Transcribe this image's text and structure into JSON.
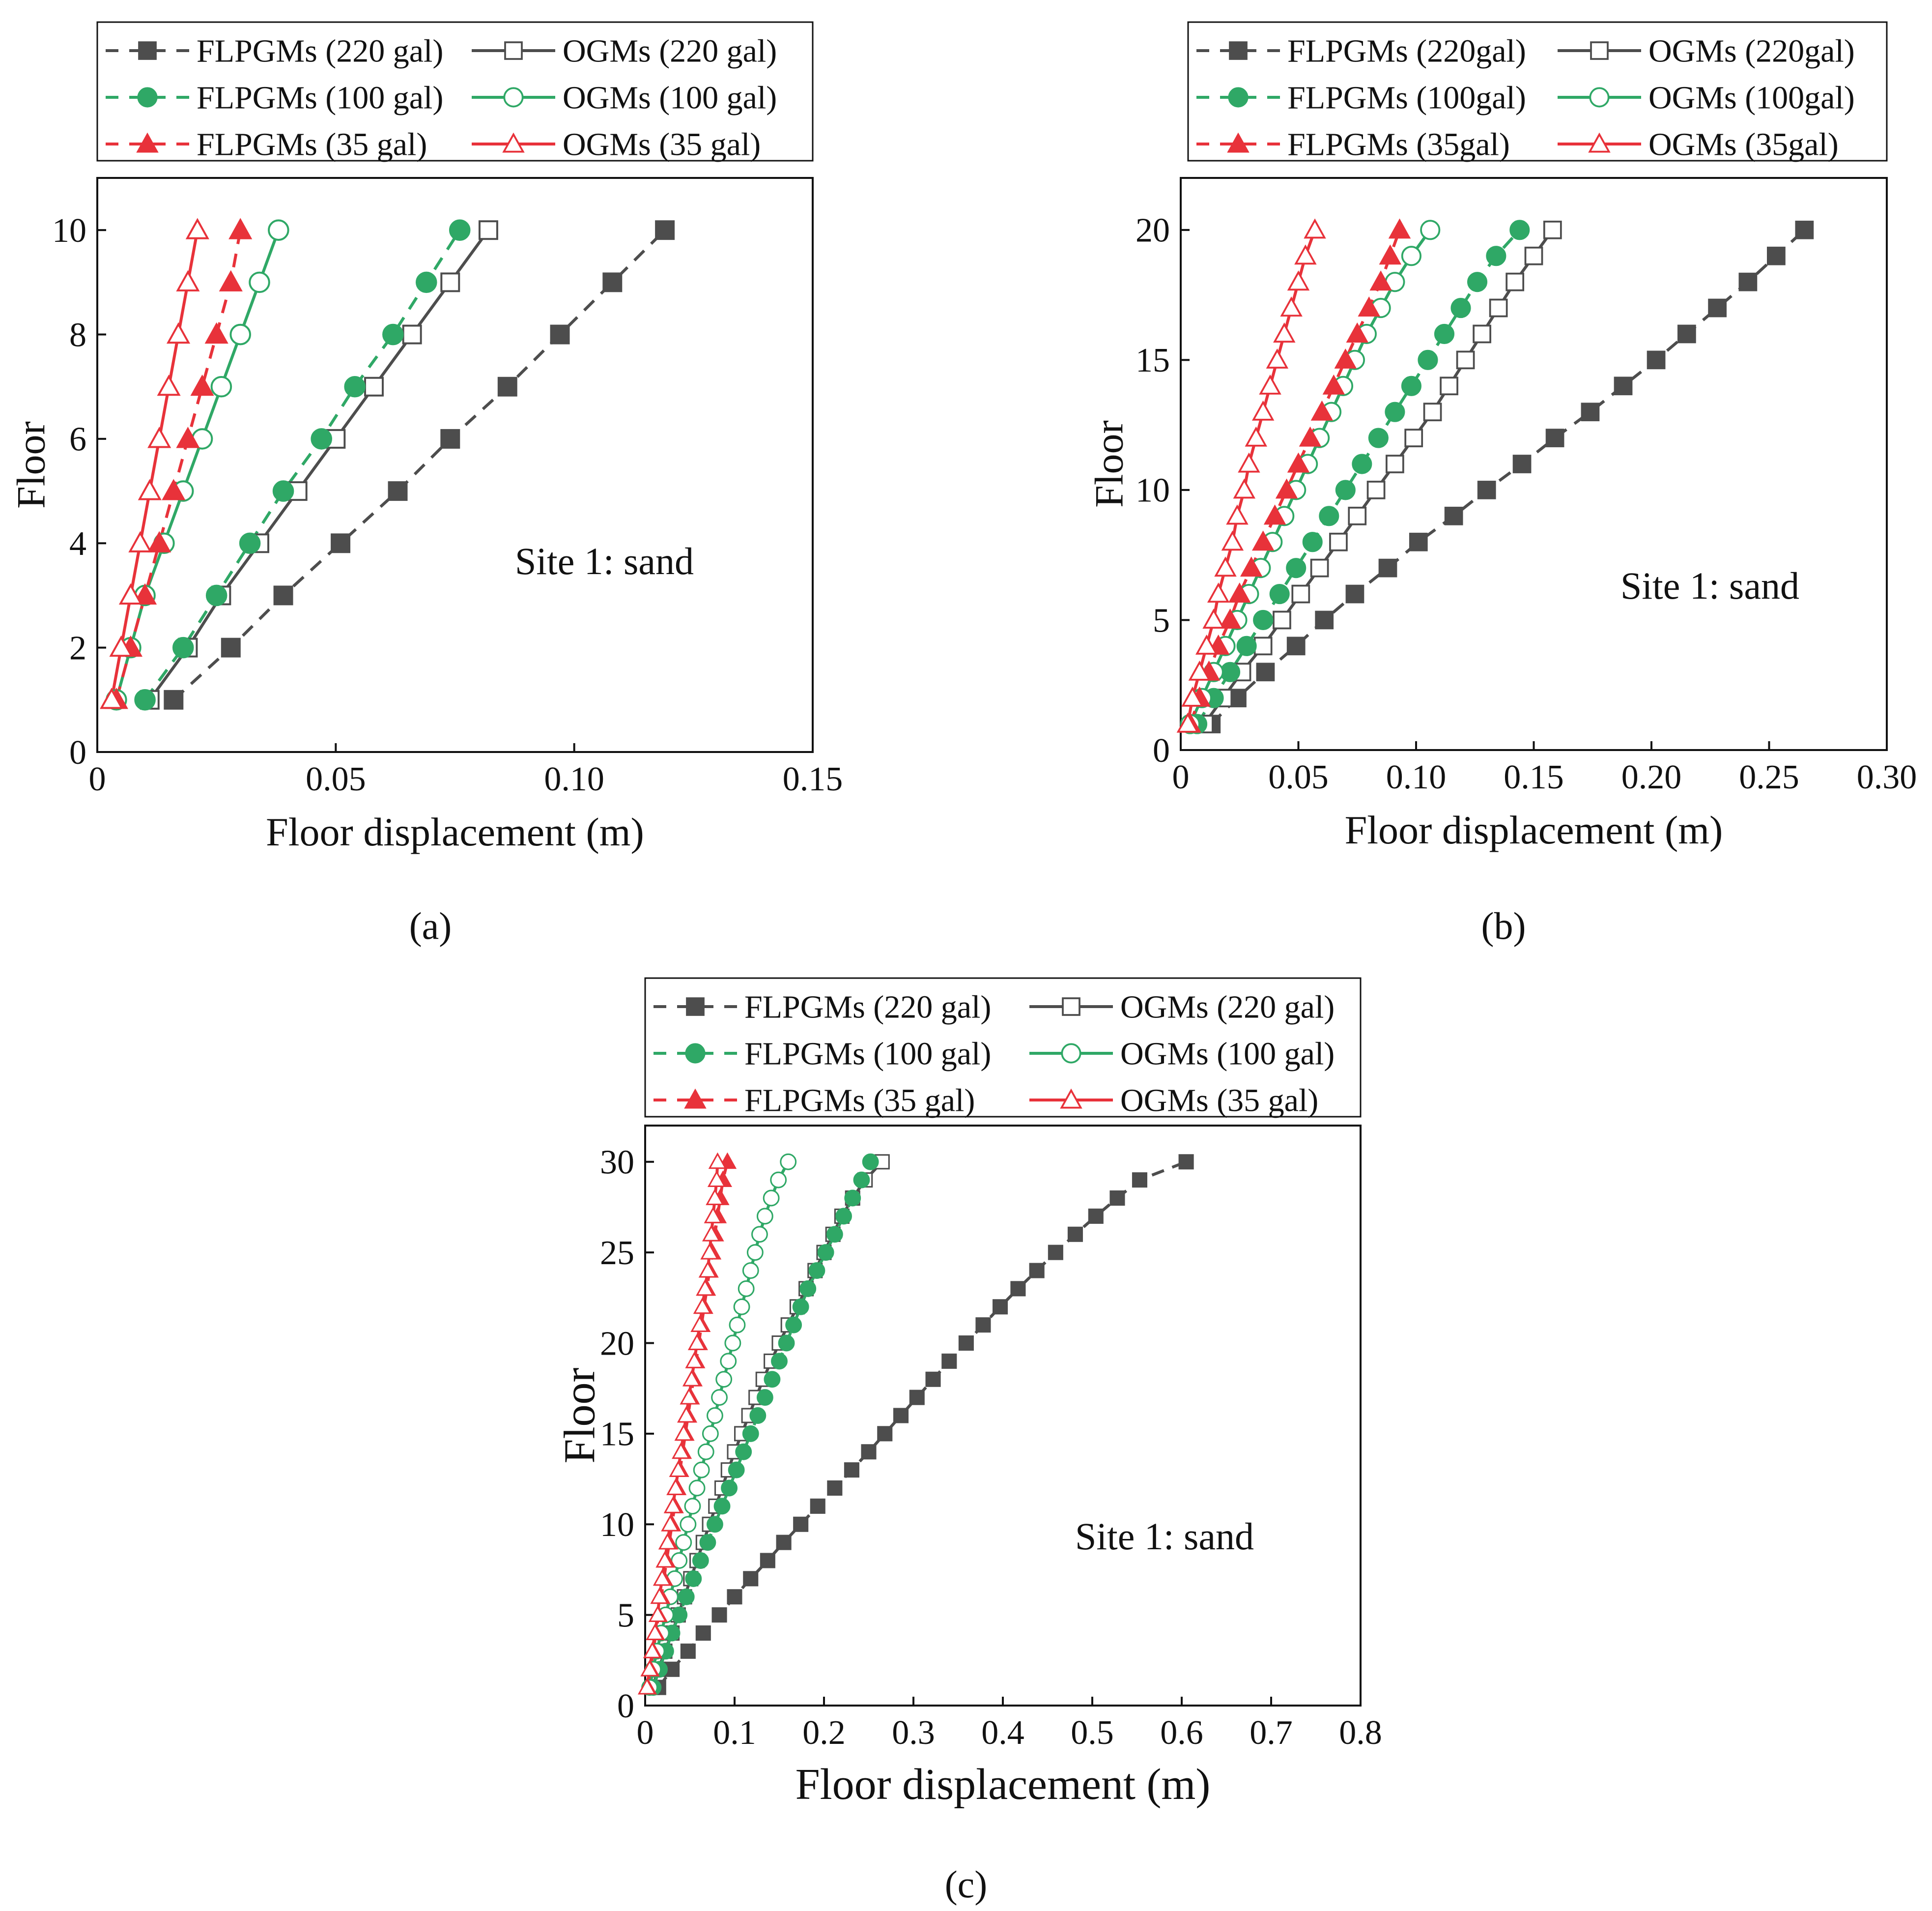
{
  "colors": {
    "dark": "#4d4d4d",
    "green": "#2fa866",
    "red": "#e8323a",
    "axis": "#111111"
  },
  "chart_data": [
    {
      "type": "line",
      "panel_label": "(a)",
      "annotation": "Site 1: sand",
      "xlabel": "Floor displacement (m)",
      "ylabel": "Floor",
      "xlim": [
        0,
        0.15
      ],
      "ylim": [
        0,
        11
      ],
      "xticks": [
        0,
        0.05,
        0.1,
        0.15
      ],
      "xtick_labels": [
        "0",
        "0.05",
        "0.10",
        "0.15"
      ],
      "yticks": [
        0,
        2,
        4,
        6,
        8,
        10
      ],
      "ytick_labels": [
        "0",
        "2",
        "4",
        "6",
        "8",
        "10"
      ],
      "legend": [
        [
          "FLPGMs (220 gal)",
          "OGMs (220 gal)"
        ],
        [
          "FLPGMs (100 gal)",
          "OGMs (100 gal)"
        ],
        [
          "FLPGMs (35 gal)",
          "OGMs  (35 gal)"
        ]
      ],
      "series": [
        {
          "name": "FLPGMs (220 gal)",
          "color": "dark",
          "marker": "square",
          "filled": true,
          "dash": true,
          "floors": [
            1,
            2,
            3,
            4,
            5,
            6,
            7,
            8,
            9,
            10
          ],
          "values": [
            0.016,
            0.028,
            0.039,
            0.051,
            0.063,
            0.074,
            0.086,
            0.097,
            0.108,
            0.119
          ]
        },
        {
          "name": "OGMs (220 gal)",
          "color": "dark",
          "marker": "square",
          "filled": false,
          "dash": false,
          "floors": [
            1,
            2,
            3,
            4,
            5,
            6,
            7,
            8,
            9,
            10
          ],
          "values": [
            0.011,
            0.019,
            0.026,
            0.034,
            0.042,
            0.05,
            0.058,
            0.066,
            0.074,
            0.082
          ]
        },
        {
          "name": "FLPGMs (100 gal)",
          "color": "green",
          "marker": "circle",
          "filled": true,
          "dash": true,
          "floors": [
            1,
            2,
            3,
            4,
            5,
            6,
            7,
            8,
            9,
            10
          ],
          "values": [
            0.01,
            0.018,
            0.025,
            0.032,
            0.039,
            0.047,
            0.054,
            0.062,
            0.069,
            0.076
          ]
        },
        {
          "name": "OGMs (100 gal)",
          "color": "green",
          "marker": "circle",
          "filled": false,
          "dash": false,
          "floors": [
            1,
            2,
            3,
            4,
            5,
            6,
            7,
            8,
            9,
            10
          ],
          "values": [
            0.004,
            0.007,
            0.01,
            0.014,
            0.018,
            0.022,
            0.026,
            0.03,
            0.034,
            0.038
          ]
        },
        {
          "name": "FLPGMs (35 gal)",
          "color": "red",
          "marker": "triangle",
          "filled": true,
          "dash": true,
          "floors": [
            1,
            2,
            3,
            4,
            5,
            6,
            7,
            8,
            9,
            10
          ],
          "values": [
            0.004,
            0.007,
            0.01,
            0.013,
            0.016,
            0.019,
            0.022,
            0.025,
            0.028,
            0.03
          ]
        },
        {
          "name": "OGMs  (35 gal)",
          "color": "red",
          "marker": "triangle",
          "filled": false,
          "dash": false,
          "floors": [
            1,
            2,
            3,
            4,
            5,
            6,
            7,
            8,
            9,
            10
          ],
          "values": [
            0.003,
            0.005,
            0.007,
            0.009,
            0.011,
            0.013,
            0.015,
            0.017,
            0.019,
            0.021
          ]
        }
      ]
    },
    {
      "type": "line",
      "panel_label": "(b)",
      "annotation": "Site 1: sand",
      "xlabel": "Floor displacement (m)",
      "ylabel": "Floor",
      "xlim": [
        0,
        0.3
      ],
      "ylim": [
        0,
        22
      ],
      "xticks": [
        0,
        0.05,
        0.1,
        0.15,
        0.2,
        0.25,
        0.3
      ],
      "xtick_labels": [
        "0",
        "0.05",
        "0.10",
        "0.15",
        "0.20",
        "0.25",
        "0.30"
      ],
      "yticks": [
        0,
        5,
        10,
        15,
        20
      ],
      "ytick_labels": [
        "0",
        "5",
        "10",
        "15",
        "20"
      ],
      "legend": [
        [
          "FLPGMs (220gal)",
          "OGMs (220gal)"
        ],
        [
          "FLPGMs (100gal)",
          "OGMs (100gal)"
        ],
        [
          "FLPGMs (35gal)",
          "OGMs (35gal)"
        ]
      ],
      "series": [
        {
          "name": "FLPGMs (220gal)",
          "color": "dark",
          "marker": "square",
          "filled": true,
          "dash": true,
          "floors": [
            1,
            2,
            3,
            4,
            5,
            6,
            7,
            8,
            9,
            10,
            11,
            12,
            13,
            14,
            15,
            16,
            17,
            18,
            19,
            20
          ],
          "values": [
            0.013,
            0.024,
            0.036,
            0.049,
            0.061,
            0.074,
            0.088,
            0.101,
            0.116,
            0.13,
            0.145,
            0.159,
            0.174,
            0.188,
            0.202,
            0.215,
            0.228,
            0.241,
            0.253,
            0.265
          ]
        },
        {
          "name": "OGMs (220gal)",
          "color": "dark",
          "marker": "square",
          "filled": false,
          "dash": false,
          "floors": [
            1,
            2,
            3,
            4,
            5,
            6,
            7,
            8,
            9,
            10,
            11,
            12,
            13,
            14,
            15,
            16,
            17,
            18,
            19,
            20
          ],
          "values": [
            0.01,
            0.018,
            0.026,
            0.035,
            0.043,
            0.051,
            0.059,
            0.067,
            0.075,
            0.083,
            0.091,
            0.099,
            0.107,
            0.114,
            0.121,
            0.128,
            0.135,
            0.142,
            0.15,
            0.158
          ]
        },
        {
          "name": "FLPGMs (100gal)",
          "color": "green",
          "marker": "circle",
          "filled": true,
          "dash": true,
          "floors": [
            1,
            2,
            3,
            4,
            5,
            6,
            7,
            8,
            9,
            10,
            11,
            12,
            13,
            14,
            15,
            16,
            17,
            18,
            19,
            20
          ],
          "values": [
            0.007,
            0.014,
            0.021,
            0.028,
            0.035,
            0.042,
            0.049,
            0.056,
            0.063,
            0.07,
            0.077,
            0.084,
            0.091,
            0.098,
            0.105,
            0.112,
            0.119,
            0.126,
            0.134,
            0.144
          ]
        },
        {
          "name": "OGMs (100gal)",
          "color": "green",
          "marker": "circle",
          "filled": false,
          "dash": false,
          "floors": [
            1,
            2,
            3,
            4,
            5,
            6,
            7,
            8,
            9,
            10,
            11,
            12,
            13,
            14,
            15,
            16,
            17,
            18,
            19,
            20
          ],
          "values": [
            0.004,
            0.009,
            0.014,
            0.019,
            0.024,
            0.029,
            0.034,
            0.039,
            0.044,
            0.049,
            0.054,
            0.059,
            0.064,
            0.069,
            0.074,
            0.079,
            0.085,
            0.091,
            0.098,
            0.106
          ]
        },
        {
          "name": "FLPGMs (35gal)",
          "color": "red",
          "marker": "triangle",
          "filled": true,
          "dash": true,
          "floors": [
            1,
            2,
            3,
            4,
            5,
            6,
            7,
            8,
            9,
            10,
            11,
            12,
            13,
            14,
            15,
            16,
            17,
            18,
            19,
            20
          ],
          "values": [
            0.004,
            0.008,
            0.012,
            0.016,
            0.021,
            0.025,
            0.03,
            0.035,
            0.04,
            0.045,
            0.05,
            0.055,
            0.06,
            0.065,
            0.07,
            0.075,
            0.08,
            0.085,
            0.089,
            0.093
          ]
        },
        {
          "name": "OGMs (35gal)",
          "color": "red",
          "marker": "triangle",
          "filled": false,
          "dash": false,
          "floors": [
            1,
            2,
            3,
            4,
            5,
            6,
            7,
            8,
            9,
            10,
            11,
            12,
            13,
            14,
            15,
            16,
            17,
            18,
            19,
            20
          ],
          "values": [
            0.003,
            0.005,
            0.008,
            0.011,
            0.014,
            0.016,
            0.019,
            0.022,
            0.024,
            0.027,
            0.029,
            0.032,
            0.035,
            0.038,
            0.041,
            0.044,
            0.047,
            0.05,
            0.053,
            0.057
          ]
        }
      ]
    },
    {
      "type": "line",
      "panel_label": "(c)",
      "annotation": "Site 1: sand",
      "xlabel": "Floor displacement (m)",
      "ylabel": "Floor",
      "xlim": [
        0,
        0.8
      ],
      "ylim": [
        0,
        32
      ],
      "xticks": [
        0,
        0.1,
        0.2,
        0.3,
        0.4,
        0.5,
        0.6,
        0.7,
        0.8
      ],
      "xtick_labels": [
        "0",
        "0.1",
        "0.2",
        "0.3",
        "0.4",
        "0.5",
        "0.6",
        "0.7",
        "0.8"
      ],
      "yticks": [
        0,
        5,
        10,
        15,
        20,
        25,
        30
      ],
      "ytick_labels": [
        "0",
        "5",
        "10",
        "15",
        "20",
        "25",
        "30"
      ],
      "legend": [
        [
          "FLPGMs (220 gal)",
          "OGMs (220 gal)"
        ],
        [
          "FLPGMs (100 gal)",
          "OGMs (100 gal)"
        ],
        [
          "FLPGMs (35 gal)",
          "OGMs  (35 gal)"
        ]
      ],
      "series": [
        {
          "name": "FLPGMs (220 gal)",
          "color": "dark",
          "marker": "square",
          "filled": true,
          "dash": true,
          "floors": [
            1,
            2,
            3,
            4,
            5,
            6,
            7,
            8,
            9,
            10,
            11,
            12,
            13,
            14,
            15,
            16,
            17,
            18,
            19,
            20,
            21,
            22,
            23,
            24,
            25,
            26,
            27,
            28,
            29,
            30
          ],
          "values": [
            0.015,
            0.03,
            0.048,
            0.065,
            0.083,
            0.1,
            0.118,
            0.137,
            0.155,
            0.174,
            0.193,
            0.212,
            0.231,
            0.25,
            0.268,
            0.286,
            0.304,
            0.322,
            0.34,
            0.359,
            0.378,
            0.397,
            0.417,
            0.438,
            0.459,
            0.481,
            0.504,
            0.528,
            0.553,
            0.605
          ]
        },
        {
          "name": "OGMs (220 gal)",
          "color": "dark",
          "marker": "square",
          "filled": false,
          "dash": false,
          "floors": [
            1,
            2,
            3,
            4,
            5,
            6,
            7,
            8,
            9,
            10,
            11,
            12,
            13,
            14,
            15,
            16,
            17,
            18,
            19,
            20,
            21,
            22,
            23,
            24,
            25,
            26,
            27,
            28,
            29,
            30
          ],
          "values": [
            0.008,
            0.015,
            0.022,
            0.03,
            0.037,
            0.044,
            0.051,
            0.058,
            0.065,
            0.072,
            0.079,
            0.086,
            0.093,
            0.1,
            0.108,
            0.116,
            0.124,
            0.132,
            0.141,
            0.15,
            0.16,
            0.17,
            0.18,
            0.19,
            0.2,
            0.21,
            0.22,
            0.232,
            0.246,
            0.265
          ]
        },
        {
          "name": "FLPGMs (100 gal)",
          "color": "green",
          "marker": "circle",
          "filled": true,
          "dash": true,
          "floors": [
            1,
            2,
            3,
            4,
            5,
            6,
            7,
            8,
            9,
            10,
            11,
            12,
            13,
            14,
            15,
            16,
            17,
            18,
            19,
            20,
            21,
            22,
            23,
            24,
            25,
            26,
            27,
            28,
            29,
            30
          ],
          "values": [
            0.009,
            0.016,
            0.023,
            0.03,
            0.038,
            0.046,
            0.054,
            0.062,
            0.07,
            0.078,
            0.086,
            0.094,
            0.102,
            0.11,
            0.118,
            0.126,
            0.134,
            0.142,
            0.15,
            0.158,
            0.166,
            0.174,
            0.182,
            0.192,
            0.202,
            0.212,
            0.222,
            0.232,
            0.242,
            0.252
          ]
        },
        {
          "name": "OGMs (100 gal)",
          "color": "green",
          "marker": "circle",
          "filled": false,
          "dash": false,
          "floors": [
            1,
            2,
            3,
            4,
            5,
            6,
            7,
            8,
            9,
            10,
            11,
            12,
            13,
            14,
            15,
            16,
            17,
            18,
            19,
            20,
            21,
            22,
            23,
            24,
            25,
            26,
            27,
            28,
            29,
            30
          ],
          "values": [
            0.005,
            0.009,
            0.013,
            0.018,
            0.023,
            0.028,
            0.033,
            0.038,
            0.043,
            0.048,
            0.053,
            0.058,
            0.063,
            0.068,
            0.073,
            0.078,
            0.083,
            0.088,
            0.093,
            0.098,
            0.103,
            0.108,
            0.113,
            0.118,
            0.123,
            0.128,
            0.134,
            0.141,
            0.149,
            0.16
          ]
        },
        {
          "name": "FLPGMs (35 gal)",
          "color": "red",
          "marker": "triangle",
          "filled": true,
          "dash": true,
          "floors": [
            1,
            2,
            3,
            4,
            5,
            6,
            7,
            8,
            9,
            10,
            11,
            12,
            13,
            14,
            15,
            16,
            17,
            18,
            19,
            20,
            21,
            22,
            23,
            24,
            25,
            26,
            27,
            28,
            29,
            30
          ],
          "values": [
            0.003,
            0.006,
            0.009,
            0.012,
            0.015,
            0.018,
            0.021,
            0.024,
            0.027,
            0.03,
            0.033,
            0.036,
            0.039,
            0.042,
            0.045,
            0.048,
            0.051,
            0.054,
            0.057,
            0.06,
            0.063,
            0.066,
            0.069,
            0.072,
            0.075,
            0.078,
            0.081,
            0.084,
            0.087,
            0.092
          ]
        },
        {
          "name": "OGMs  (35 gal)",
          "color": "red",
          "marker": "triangle",
          "filled": false,
          "dash": false,
          "floors": [
            1,
            2,
            3,
            4,
            5,
            6,
            7,
            8,
            9,
            10,
            11,
            12,
            13,
            14,
            15,
            16,
            17,
            18,
            19,
            20,
            21,
            22,
            23,
            24,
            25,
            26,
            27,
            28,
            29,
            30
          ],
          "values": [
            0.002,
            0.005,
            0.008,
            0.011,
            0.014,
            0.016,
            0.019,
            0.022,
            0.025,
            0.028,
            0.031,
            0.034,
            0.037,
            0.04,
            0.043,
            0.046,
            0.049,
            0.052,
            0.055,
            0.058,
            0.061,
            0.064,
            0.067,
            0.07,
            0.072,
            0.074,
            0.076,
            0.078,
            0.08,
            0.081
          ]
        }
      ]
    }
  ]
}
